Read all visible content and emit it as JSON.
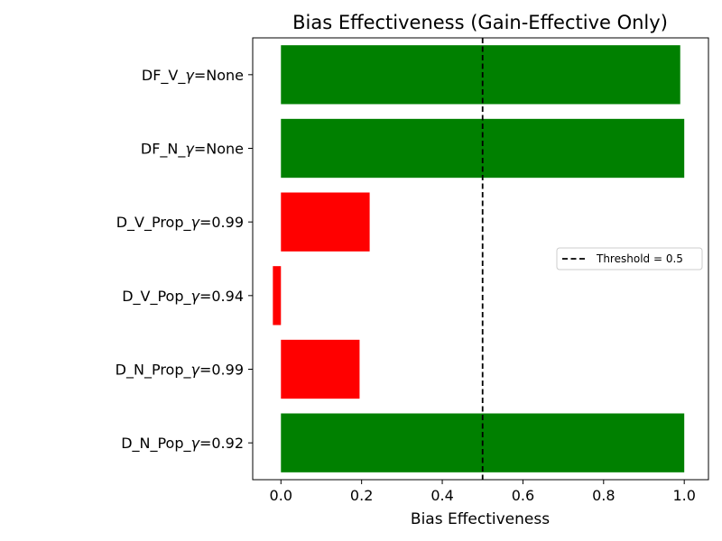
{
  "chart_data": {
    "type": "bar",
    "orientation": "horizontal",
    "title": "Bias Effectiveness (Gain-Effective Only)",
    "xlabel": "Bias Effectiveness",
    "ylabel": "",
    "xlim": [
      -0.07,
      1.06
    ],
    "xticks": [
      0.0,
      0.2,
      0.4,
      0.6,
      0.8,
      1.0
    ],
    "xtick_labels": [
      "0.0",
      "0.2",
      "0.4",
      "0.6",
      "0.8",
      "1.0"
    ],
    "categories": [
      "DF_V_γ=None",
      "DF_N_γ=None",
      "D_V_Prop_γ=0.99",
      "D_V_Pop_γ=0.94",
      "D_N_Prop_γ=0.99",
      "D_N_Pop_γ=0.92"
    ],
    "values": [
      0.99,
      1.0,
      0.22,
      -0.02,
      0.195,
      1.0
    ],
    "bar_colors": [
      "#008000",
      "#008000",
      "#ff0000",
      "#ff0000",
      "#ff0000",
      "#008000"
    ],
    "threshold": {
      "value": 0.5,
      "label": "Threshold = 0.5",
      "style": "dashed",
      "color": "#000000"
    },
    "legend": {
      "position": "center-right",
      "entries": [
        "Threshold = 0.5"
      ]
    },
    "grid": false
  }
}
